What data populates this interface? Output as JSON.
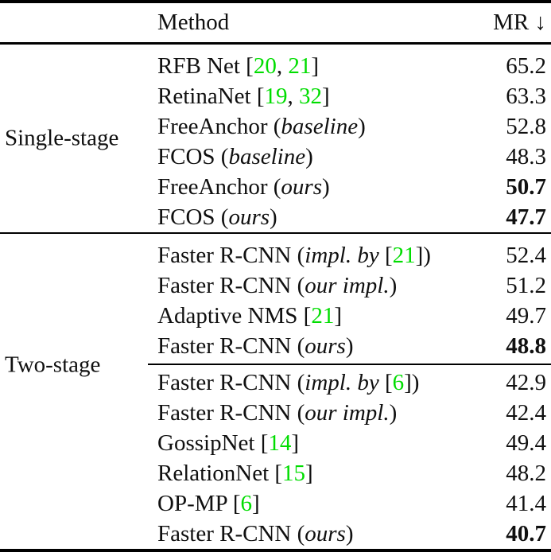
{
  "page": {
    "background": "#ffffff"
  },
  "colors": {
    "text": "#101010",
    "citation_green": "#00dd00",
    "rule_black": "#000000"
  },
  "table": {
    "header": {
      "method": "Method",
      "mr": "MR ↓"
    },
    "sections": [
      {
        "group": "Single-stage",
        "rows": [
          {
            "method": [
              {
                "t": "RFB Net ["
              },
              {
                "t": "20",
                "s": "cite"
              },
              {
                "t": ", "
              },
              {
                "t": "21",
                "s": "cite"
              },
              {
                "t": "]"
              }
            ],
            "mr": "65.2",
            "bold": false
          },
          {
            "method": [
              {
                "t": "RetinaNet ["
              },
              {
                "t": "19",
                "s": "cite"
              },
              {
                "t": ", "
              },
              {
                "t": "32",
                "s": "cite"
              },
              {
                "t": "]"
              }
            ],
            "mr": "63.3",
            "bold": false
          },
          {
            "method": [
              {
                "t": "FreeAnchor ("
              },
              {
                "t": "baseline",
                "s": "ital"
              },
              {
                "t": ")"
              }
            ],
            "mr": "52.8",
            "bold": false
          },
          {
            "method": [
              {
                "t": "FCOS ("
              },
              {
                "t": "baseline",
                "s": "ital"
              },
              {
                "t": ")"
              }
            ],
            "mr": "48.3",
            "bold": false
          },
          {
            "method": [
              {
                "t": "FreeAnchor ("
              },
              {
                "t": "ours",
                "s": "ital"
              },
              {
                "t": ")"
              }
            ],
            "mr": "50.7",
            "bold": true
          },
          {
            "method": [
              {
                "t": "FCOS ("
              },
              {
                "t": "ours",
                "s": "ital"
              },
              {
                "t": ")"
              }
            ],
            "mr": "47.7",
            "bold": true
          }
        ]
      },
      {
        "group": "Two-stage",
        "rows": [
          {
            "method": [
              {
                "t": "Faster R-CNN ("
              },
              {
                "t": "impl. by",
                "s": "ital"
              },
              {
                "t": " ["
              },
              {
                "t": "21",
                "s": "cite"
              },
              {
                "t": "])"
              }
            ],
            "mr": "52.4",
            "bold": false
          },
          {
            "method": [
              {
                "t": "Faster R-CNN ("
              },
              {
                "t": "our impl.",
                "s": "ital"
              },
              {
                "t": ")"
              }
            ],
            "mr": "51.2",
            "bold": false
          },
          {
            "method": [
              {
                "t": "Adaptive NMS ["
              },
              {
                "t": "21",
                "s": "cite"
              },
              {
                "t": "]"
              }
            ],
            "mr": "49.7",
            "bold": false
          },
          {
            "method": [
              {
                "t": "Faster R-CNN ("
              },
              {
                "t": "ours",
                "s": "ital"
              },
              {
                "t": ")"
              }
            ],
            "mr": "48.8",
            "bold": true
          },
          {
            "rule_before": true,
            "method": [
              {
                "t": "Faster R-CNN ("
              },
              {
                "t": "impl. by",
                "s": "ital"
              },
              {
                "t": " ["
              },
              {
                "t": "6",
                "s": "cite"
              },
              {
                "t": "])"
              }
            ],
            "mr": "42.9",
            "bold": false
          },
          {
            "method": [
              {
                "t": "Faster R-CNN ("
              },
              {
                "t": "our impl.",
                "s": "ital"
              },
              {
                "t": ")"
              }
            ],
            "mr": "42.4",
            "bold": false
          },
          {
            "method": [
              {
                "t": "GossipNet ["
              },
              {
                "t": "14",
                "s": "cite"
              },
              {
                "t": "]"
              }
            ],
            "mr": "49.4",
            "bold": false
          },
          {
            "method": [
              {
                "t": "RelationNet ["
              },
              {
                "t": "15",
                "s": "cite"
              },
              {
                "t": "]"
              }
            ],
            "mr": "48.2",
            "bold": false
          },
          {
            "method": [
              {
                "t": "OP-MP ["
              },
              {
                "t": "6",
                "s": "cite"
              },
              {
                "t": "]"
              }
            ],
            "mr": "41.4",
            "bold": false
          },
          {
            "method": [
              {
                "t": "Faster R-CNN ("
              },
              {
                "t": "ours",
                "s": "ital"
              },
              {
                "t": ")"
              }
            ],
            "mr": "40.7",
            "bold": true
          }
        ]
      }
    ]
  }
}
